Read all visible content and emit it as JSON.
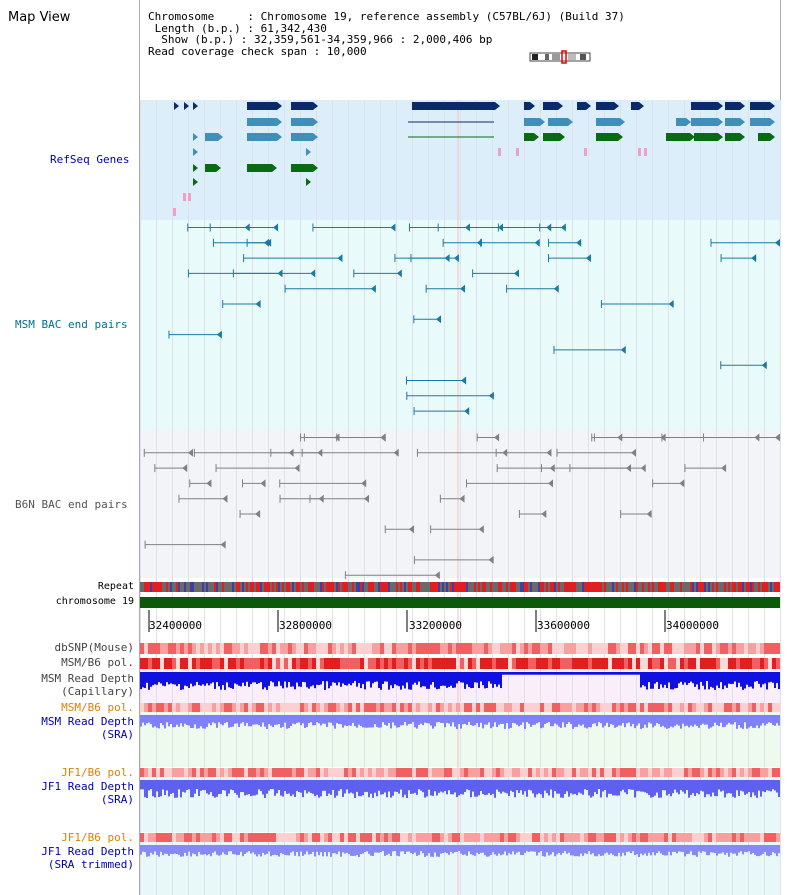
{
  "title": "Map View",
  "info": {
    "chromosome_key": "Chromosome",
    "chromosome_val": "Chromosome 19, reference assembly (C57BL/6J) (Build 37)",
    "length_key": "Length (b.p.)",
    "length_val": "61,342,430",
    "show_key": "Show (b.p.)",
    "show_val": "32,359,561-34,359,966 : 2,000,406 bp",
    "coverage_key": "Read coverage check span",
    "coverage_val": "10,000"
  },
  "tracks": {
    "refseq": "RefSeq Genes",
    "msm_bac": "MSM BAC end pairs",
    "b6n_bac": "B6N BAC end pairs",
    "repeat": "Repeat",
    "chromosome": "chromosome 19",
    "dbsnp": "dbSNP(Mouse)",
    "msm_b6_pol": "MSM/B6 pol.",
    "msm_depth_cap_1": "MSM Read Depth",
    "msm_depth_cap_2": "(Capillary)",
    "msm_b6_pol_2": "MSM/B6 pol.",
    "msm_depth_sra_1": "MSM Read Depth",
    "msm_depth_sra_2": "(SRA)",
    "jf1_b6_pol": "JF1/B6 pol.",
    "jf1_depth_sra_1": "JF1 Read Depth",
    "jf1_depth_sra_2": "(SRA)",
    "jf1_b6_pol_2": "JF1/B6 pol.",
    "jf1_depth_trim_1": "JF1 Read Depth",
    "jf1_depth_trim_2": "(SRA trimmed)"
  },
  "axis": {
    "ticks": [
      "32400000",
      "32800000",
      "33200000",
      "33600000",
      "34000000"
    ]
  },
  "colors": {
    "refseq_bg": "#dceefa",
    "msm_bg": "#e8fafa",
    "b6n_bg": "#f2f4f8",
    "gene_dark": "#0a2a6a",
    "gene_mid": "#3f8fb8",
    "gene_green": "#0a6a14",
    "gene_pink": "#f0a0c8",
    "bac_msm": "#1a7aa0",
    "bac_b6n": "#808080",
    "chrom": "#0a5a0a",
    "depth_blue": "#1010e0",
    "depth_light": "#8080ff",
    "label_blue": "#0000b0",
    "label_teal": "#007090",
    "label_orange": "#e08000",
    "label_gray": "#444444"
  }
}
